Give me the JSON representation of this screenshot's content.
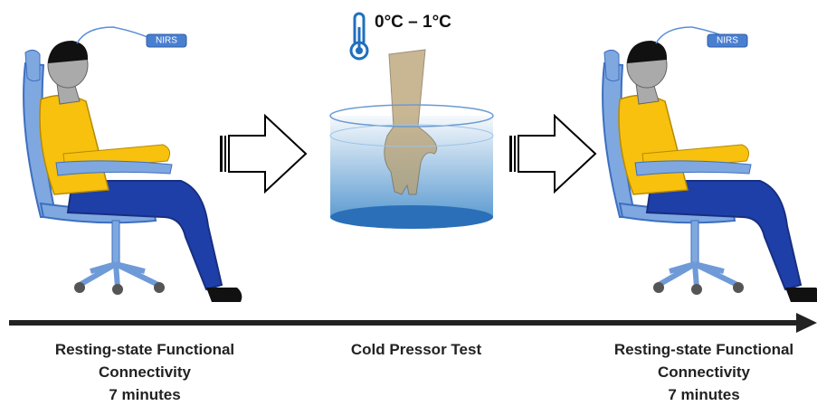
{
  "stages": [
    {
      "device": "NIRS",
      "lines": [
        "Resting-state Functional",
        "Connectivity",
        "7 minutes"
      ]
    },
    {
      "temperature": "0°C – 1°C",
      "lines": [
        "Cold Pressor Test"
      ]
    },
    {
      "device": "NIRS",
      "lines": [
        "Resting-state Functional",
        "Connectivity",
        "7 minutes"
      ]
    }
  ]
}
